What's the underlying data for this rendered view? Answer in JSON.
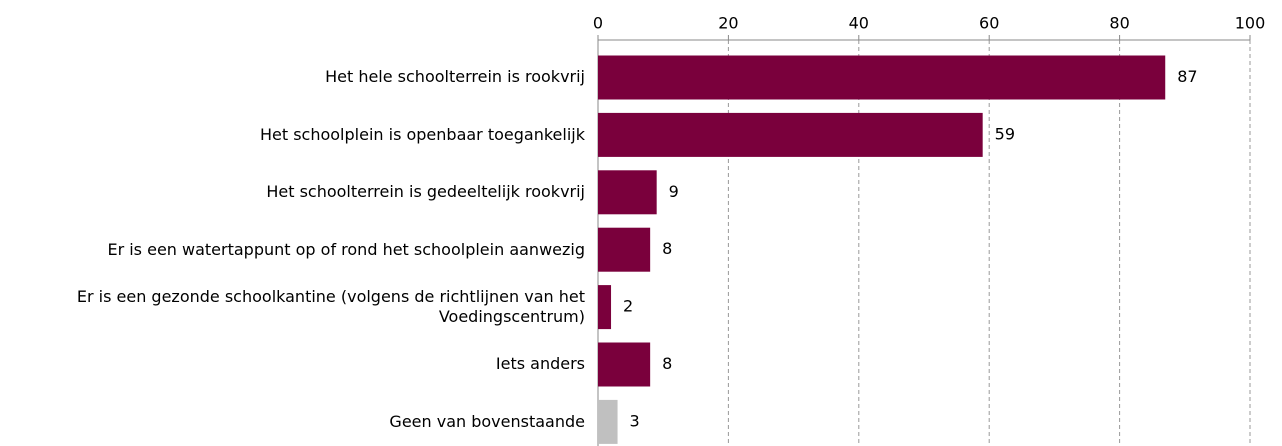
{
  "chart_data": {
    "type": "hbar",
    "categories": [
      "Het hele schoolterrein is rookvrij",
      "Het schoolplein is openbaar toegankelijk",
      "Het schoolterrein is gedeeltelijk rookvrij",
      "Er is een watertappunt op of rond het schoolplein aanwezig",
      "Er is een gezonde schoolkantine (volgens de richtlijnen van het Voedingscentrum)",
      "Iets anders",
      "Geen van bovenstaande"
    ],
    "values": [
      87,
      59,
      9,
      8,
      2,
      8,
      3
    ],
    "colors": [
      "#7a003c",
      "#7a003c",
      "#7a003c",
      "#7a003c",
      "#7a003c",
      "#7a003c",
      "#c0c0c0"
    ],
    "xlim": [
      0,
      100
    ],
    "xticks": [
      0,
      20,
      40,
      60,
      80,
      100
    ],
    "grid": true
  }
}
